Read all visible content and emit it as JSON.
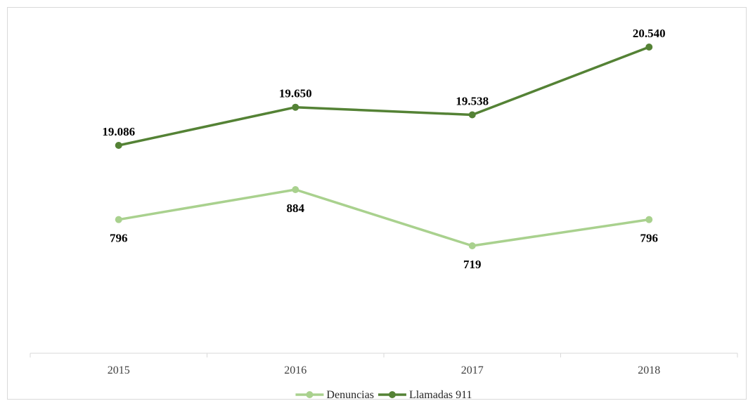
{
  "chart_data": {
    "type": "line",
    "categories": [
      "2015",
      "2016",
      "2017",
      "2018"
    ],
    "series": [
      {
        "name": "Denuncias",
        "values": [
          796,
          884,
          719,
          796
        ],
        "labels": [
          "796",
          "884",
          "719",
          "796"
        ],
        "label_position": [
          "below",
          "below",
          "below",
          "below"
        ],
        "color": "#a9d18e"
      },
      {
        "name": "Llamadas 911",
        "values": [
          19086,
          19650,
          19538,
          20540
        ],
        "labels": [
          "19.086",
          "19.650",
          "19.538",
          "20.540"
        ],
        "label_position": [
          "above",
          "above",
          "above",
          "above"
        ],
        "color": "#548235"
      }
    ],
    "title": "",
    "xlabel": "",
    "ylabel": "",
    "y_axis_visible": false,
    "grid": false,
    "legend_position": "bottom",
    "axis_color": "#d9d9d9"
  }
}
